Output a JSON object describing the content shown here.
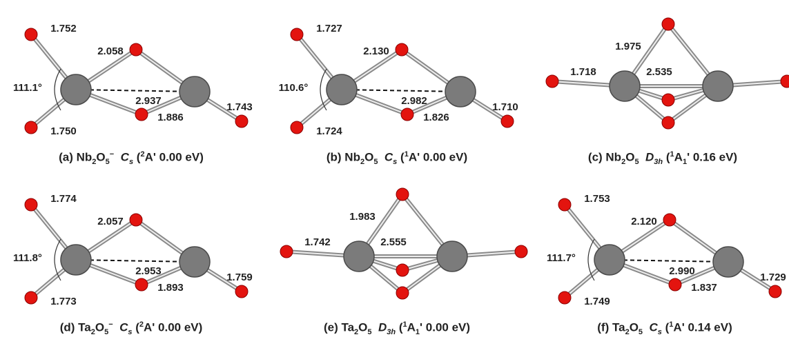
{
  "panels": [
    {
      "caption": [
        {
          "text": "(a) Nb"
        },
        {
          "text": "2",
          "style": "sub"
        },
        {
          "text": "O"
        },
        {
          "text": "5",
          "style": "sub"
        },
        {
          "text": "−",
          "style": "sup"
        },
        {
          "text": "  C",
          "style": "italic"
        },
        {
          "text": "s",
          "style": "italic-sub"
        },
        {
          "text": " ("
        },
        {
          "text": "2",
          "style": "sup"
        },
        {
          "text": "A' 0.00 eV)"
        }
      ],
      "angle": "111.1°",
      "bonds": {
        "upper_terminal": "1.752",
        "bridge_top": "2.058",
        "metal_metal": "2.937",
        "bridge_bottom": "1.886",
        "right_terminal": "1.743",
        "lower_terminal": "1.750"
      }
    },
    {
      "caption": [
        {
          "text": "(b) Nb"
        },
        {
          "text": "2",
          "style": "sub"
        },
        {
          "text": "O"
        },
        {
          "text": "5",
          "style": "sub"
        },
        {
          "text": "  C",
          "style": "italic"
        },
        {
          "text": "s",
          "style": "italic-sub"
        },
        {
          "text": " ("
        },
        {
          "text": "1",
          "style": "sup"
        },
        {
          "text": "A' 0.00 eV)"
        }
      ],
      "angle": "110.6°",
      "bonds": {
        "upper_terminal": "1.727",
        "bridge_top": "2.130",
        "metal_metal": "2.982",
        "bridge_bottom": "1.826",
        "right_terminal": "1.710",
        "lower_terminal": "1.724"
      }
    },
    {
      "caption": [
        {
          "text": "(c) Nb"
        },
        {
          "text": "2",
          "style": "sub"
        },
        {
          "text": "O"
        },
        {
          "text": "5",
          "style": "sub"
        },
        {
          "text": "  D",
          "style": "italic"
        },
        {
          "text": "3h",
          "style": "italic-sub"
        },
        {
          "text": " ("
        },
        {
          "text": "1",
          "style": "sup"
        },
        {
          "text": "A"
        },
        {
          "text": "1",
          "style": "sub"
        },
        {
          "text": "' 0.16 eV)"
        }
      ],
      "bonds": {
        "terminal": "1.718",
        "bridge_top": "1.975",
        "metal_metal": "2.535"
      }
    },
    {
      "caption": [
        {
          "text": "(d) Ta"
        },
        {
          "text": "2",
          "style": "sub"
        },
        {
          "text": "O"
        },
        {
          "text": "5",
          "style": "sub"
        },
        {
          "text": "−",
          "style": "sup"
        },
        {
          "text": "  C",
          "style": "italic"
        },
        {
          "text": "s",
          "style": "italic-sub"
        },
        {
          "text": " ("
        },
        {
          "text": "2",
          "style": "sup"
        },
        {
          "text": "A' 0.00 eV)"
        }
      ],
      "angle": "111.8°",
      "bonds": {
        "upper_terminal": "1.774",
        "bridge_top": "2.057",
        "metal_metal": "2.953",
        "bridge_bottom": "1.893",
        "right_terminal": "1.759",
        "lower_terminal": "1.773"
      }
    },
    {
      "caption": [
        {
          "text": "(e) Ta"
        },
        {
          "text": "2",
          "style": "sub"
        },
        {
          "text": "O"
        },
        {
          "text": "5",
          "style": "sub"
        },
        {
          "text": "  D",
          "style": "italic"
        },
        {
          "text": "3h",
          "style": "italic-sub"
        },
        {
          "text": " ("
        },
        {
          "text": "1",
          "style": "sup"
        },
        {
          "text": "A"
        },
        {
          "text": "1",
          "style": "sub"
        },
        {
          "text": "' 0.00 eV)"
        }
      ],
      "bonds": {
        "terminal": "1.742",
        "bridge_top": "1.983",
        "metal_metal": "2.555"
      }
    },
    {
      "caption": [
        {
          "text": "(f) Ta"
        },
        {
          "text": "2",
          "style": "sub"
        },
        {
          "text": "O"
        },
        {
          "text": "5",
          "style": "sub"
        },
        {
          "text": "  C",
          "style": "italic"
        },
        {
          "text": "s",
          "style": "italic-sub"
        },
        {
          "text": " ("
        },
        {
          "text": "1",
          "style": "sup"
        },
        {
          "text": "A' 0.14 eV)"
        }
      ],
      "angle": "111.7°",
      "bonds": {
        "upper_terminal": "1.753",
        "bridge_top": "2.120",
        "metal_metal": "2.990",
        "bridge_bottom": "1.837",
        "right_terminal": "1.729",
        "lower_terminal": "1.749"
      }
    }
  ]
}
